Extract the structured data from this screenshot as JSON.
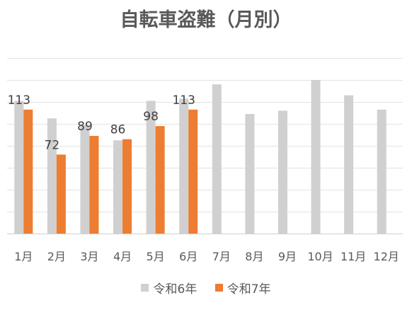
{
  "chart_data": {
    "type": "bar",
    "title": "自転車盗難（月別）",
    "categories": [
      "1月",
      "2月",
      "3月",
      "4月",
      "5月",
      "6月",
      "7月",
      "8月",
      "9月",
      "10月",
      "11月",
      "12月"
    ],
    "series": [
      {
        "name": "令和6年",
        "color": "#d0d0d0",
        "values": [
          121,
          105,
          99,
          85,
          121,
          123,
          136,
          109,
          112,
          140,
          126,
          113
        ],
        "labels": [
          null,
          null,
          null,
          null,
          null,
          null,
          null,
          null,
          null,
          null,
          null,
          null
        ]
      },
      {
        "name": "令和7年",
        "color": "#ed7d31",
        "values": [
          113,
          72,
          89,
          86,
          98,
          113,
          null,
          null,
          null,
          null,
          null,
          null
        ],
        "labels": [
          "113",
          "72",
          "89",
          "86",
          "98",
          "113",
          null,
          null,
          null,
          null,
          null,
          null
        ]
      }
    ],
    "ylim": [
      0,
      160
    ],
    "ytick_step": 20,
    "grid": true,
    "show_y_axis_labels": false,
    "legend_position": "bottom",
    "xlabel": "",
    "ylabel": ""
  }
}
